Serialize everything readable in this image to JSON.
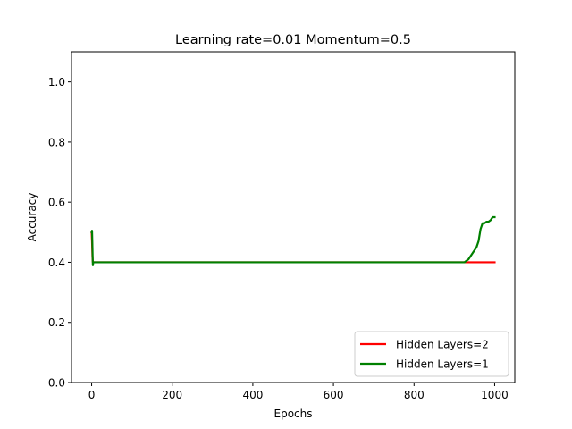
{
  "chart_data": {
    "type": "line",
    "title": "Learning rate=0.01 Momentum=0.5",
    "xlabel": "Epochs",
    "ylabel": "Accuracy",
    "xlim": [
      -50,
      1050
    ],
    "ylim": [
      0.0,
      1.1
    ],
    "xticks": [
      0,
      200,
      400,
      600,
      800,
      1000
    ],
    "yticks": [
      0.0,
      0.2,
      0.4,
      0.6,
      0.8,
      1.0
    ],
    "xtick_labels": [
      "0",
      "200",
      "400",
      "600",
      "800",
      "1000"
    ],
    "ytick_labels": [
      "0.0",
      "0.2",
      "0.4",
      "0.6",
      "0.8",
      "1.0"
    ],
    "grid": false,
    "legend_position": "lower-right",
    "series": [
      {
        "name": "Hidden Layers=2",
        "color": "#ff0000",
        "x": [
          0,
          1,
          2,
          3,
          5,
          10,
          100,
          300,
          500,
          700,
          900,
          1000
        ],
        "y": [
          0.5,
          0.47,
          0.42,
          0.4,
          0.4,
          0.4,
          0.4,
          0.4,
          0.4,
          0.4,
          0.4,
          0.4
        ]
      },
      {
        "name": "Hidden Layers=1",
        "color": "#008000",
        "x": [
          0,
          1,
          2,
          3,
          4,
          6,
          10,
          100,
          300,
          500,
          700,
          900,
          925,
          930,
          935,
          940,
          945,
          950,
          955,
          960,
          965,
          970,
          975,
          980,
          985,
          990,
          995,
          1000
        ],
        "y": [
          0.5,
          0.505,
          0.45,
          0.39,
          0.4,
          0.4,
          0.4,
          0.4,
          0.4,
          0.4,
          0.4,
          0.4,
          0.4,
          0.405,
          0.41,
          0.42,
          0.43,
          0.44,
          0.45,
          0.47,
          0.51,
          0.53,
          0.53,
          0.535,
          0.535,
          0.54,
          0.55,
          0.55
        ]
      }
    ]
  }
}
